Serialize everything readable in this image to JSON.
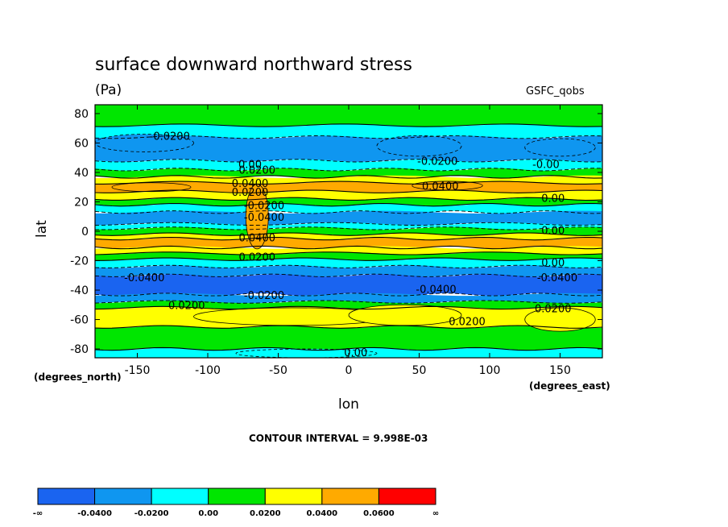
{
  "header": {
    "title": "surface downward northward stress",
    "units": "(Pa)",
    "source": "GSFC_qobs"
  },
  "axes": {
    "ylabel": "lat",
    "xlabel": "lon",
    "y_units": "(degrees_north)",
    "x_units": "(degrees_east)"
  },
  "footer": {
    "contour_interval": "CONTOUR INTERVAL = 9.998E-03"
  },
  "chart_data": {
    "type": "heatmap",
    "title": "surface downward northward stress",
    "xlabel": "lon",
    "ylabel": "lat",
    "xlim": [
      -180,
      180
    ],
    "ylim": [
      -86,
      86
    ],
    "x_ticks": [
      -150,
      -100,
      -50,
      0,
      50,
      100,
      150
    ],
    "x_tick_labels": [
      "-150",
      "-100",
      "-50",
      "0",
      "50",
      "100",
      "150"
    ],
    "y_ticks": [
      -80,
      -60,
      -40,
      -20,
      0,
      20,
      40,
      60,
      80
    ],
    "y_tick_labels": [
      "-80",
      "-60",
      "-40",
      "-20",
      "0",
      "20",
      "40",
      "60",
      "80"
    ],
    "colorbar": {
      "colors": [
        "#1a64f0",
        "#0f96f0",
        "#00ffff",
        "#00e600",
        "#ffff00",
        "#ffaa00",
        "#ff0000"
      ],
      "labels": [
        "-∞",
        "-0.0400",
        "-0.0200",
        "0.00",
        "0.0200",
        "0.0400",
        "0.0600",
        "∞"
      ]
    },
    "lat_bands": [
      {
        "lat_min": 72,
        "lat_max": 86,
        "value": 0.005
      },
      {
        "lat_min": 64,
        "lat_max": 72,
        "value": -0.015
      },
      {
        "lat_min": 48,
        "lat_max": 64,
        "value": -0.025
      },
      {
        "lat_min": 42,
        "lat_max": 48,
        "value": -0.005
      },
      {
        "lat_min": 37,
        "lat_max": 42,
        "value": 0.008
      },
      {
        "lat_min": 33,
        "lat_max": 37,
        "value": 0.03
      },
      {
        "lat_min": 27,
        "lat_max": 33,
        "value": 0.045
      },
      {
        "lat_min": 22,
        "lat_max": 27,
        "value": 0.025
      },
      {
        "lat_min": 18,
        "lat_max": 22,
        "value": 0.005
      },
      {
        "lat_min": 13,
        "lat_max": 18,
        "value": -0.015
      },
      {
        "lat_min": 5,
        "lat_max": 13,
        "value": -0.035
      },
      {
        "lat_min": 2,
        "lat_max": 5,
        "value": -0.015
      },
      {
        "lat_min": -2,
        "lat_max": 2,
        "value": 0.005
      },
      {
        "lat_min": -5,
        "lat_max": -2,
        "value": 0.025
      },
      {
        "lat_min": -11,
        "lat_max": -5,
        "value": 0.045
      },
      {
        "lat_min": -15,
        "lat_max": -11,
        "value": 0.025
      },
      {
        "lat_min": -19,
        "lat_max": -15,
        "value": 0.005
      },
      {
        "lat_min": -24,
        "lat_max": -19,
        "value": -0.005
      },
      {
        "lat_min": -30,
        "lat_max": -24,
        "value": -0.025
      },
      {
        "lat_min": -43,
        "lat_max": -30,
        "value": -0.045
      },
      {
        "lat_min": -48,
        "lat_max": -43,
        "value": -0.025
      },
      {
        "lat_min": -52,
        "lat_max": -48,
        "value": 0.005
      },
      {
        "lat_min": -65,
        "lat_max": -52,
        "value": 0.025
      },
      {
        "lat_min": -80,
        "lat_max": -65,
        "value": 0.005
      },
      {
        "lat_min": -86,
        "lat_max": -80,
        "value": -0.005
      }
    ],
    "contour_labels": [
      {
        "text": "-0.0200",
        "lon": -127,
        "lat": 64
      },
      {
        "text": "-0.0200",
        "lon": 63,
        "lat": 47
      },
      {
        "text": "-0.00",
        "lon": 140,
        "lat": 45
      },
      {
        "text": "0.00",
        "lon": -70,
        "lat": 45
      },
      {
        "text": "0.0200",
        "lon": -65,
        "lat": 41
      },
      {
        "text": "0.0400",
        "lon": -70,
        "lat": 32
      },
      {
        "text": "0.0400",
        "lon": 65,
        "lat": 30
      },
      {
        "text": "0.0200",
        "lon": -70,
        "lat": 26
      },
      {
        "text": "0.00",
        "lon": 145,
        "lat": 22
      },
      {
        "text": "-0.0200",
        "lon": -60,
        "lat": 17
      },
      {
        "text": "-0.0400",
        "lon": -60,
        "lat": 9
      },
      {
        "text": "0.00",
        "lon": 145,
        "lat": 0
      },
      {
        "text": "0.0400",
        "lon": -65,
        "lat": -5
      },
      {
        "text": "0.0200",
        "lon": -65,
        "lat": -18
      },
      {
        "text": "0.00",
        "lon": 145,
        "lat": -22
      },
      {
        "text": "-0.0400",
        "lon": -145,
        "lat": -32
      },
      {
        "text": "-0.0400",
        "lon": 148,
        "lat": -32
      },
      {
        "text": "-0.0400",
        "lon": 62,
        "lat": -40
      },
      {
        "text": "-0.0200",
        "lon": -60,
        "lat": -44
      },
      {
        "text": "0.0200",
        "lon": -115,
        "lat": -51
      },
      {
        "text": "0.0200",
        "lon": 145,
        "lat": -53
      },
      {
        "text": "0.0200",
        "lon": 84,
        "lat": -62
      },
      {
        "text": "0.00",
        "lon": 5,
        "lat": -83
      }
    ]
  }
}
